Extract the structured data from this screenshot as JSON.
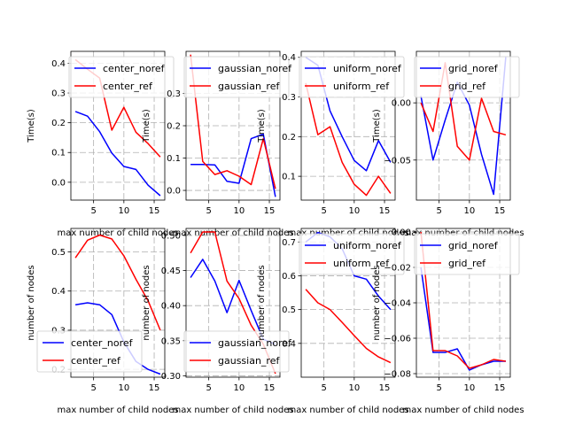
{
  "chart_data": [
    {
      "type": "line",
      "x": [
        2,
        4,
        6,
        8,
        10,
        12,
        14,
        16
      ],
      "ylabel": "Time(s)",
      "xlabel": "max number of child nodes",
      "ylim": [
        -0.06,
        0.44
      ],
      "yticks": [
        0.0,
        0.1,
        0.2,
        0.3,
        0.4
      ],
      "grid": true,
      "legend": "upper right",
      "series": [
        {
          "name": "center_noref",
          "color": "#0000ff",
          "values": [
            0.238,
            0.222,
            0.17,
            0.098,
            0.053,
            0.043,
            -0.01,
            -0.045
          ]
        },
        {
          "name": "center_ref",
          "color": "#ff0000",
          "values": [
            0.412,
            0.38,
            0.35,
            0.175,
            0.252,
            0.168,
            0.13,
            0.085
          ]
        }
      ]
    },
    {
      "type": "line",
      "x": [
        2,
        4,
        6,
        8,
        10,
        12,
        14,
        16
      ],
      "ylabel": "Time(s)",
      "xlabel": "max number of child nodes",
      "ylim": [
        -0.03,
        0.43
      ],
      "yticks": [
        0.0,
        0.1,
        0.2,
        0.3
      ],
      "grid": true,
      "legend": "upper right",
      "series": [
        {
          "name": "gaussian_noref",
          "color": "#0000ff",
          "values": [
            0.08,
            0.08,
            0.079,
            0.028,
            0.022,
            0.16,
            0.174,
            -0.02
          ]
        },
        {
          "name": "gaussian_ref",
          "color": "#ff0000",
          "values": [
            0.42,
            0.09,
            0.049,
            0.061,
            0.044,
            0.018,
            0.16,
            0.005
          ]
        }
      ]
    },
    {
      "type": "line",
      "x": [
        2,
        4,
        6,
        8,
        10,
        12,
        14,
        16
      ],
      "ylabel": "Time(s)",
      "xlabel": "max number of child nodes",
      "ylim": [
        0.04,
        0.415
      ],
      "yticks": [
        0.1,
        0.2,
        0.3,
        0.4
      ],
      "grid": true,
      "legend": "upper right",
      "series": [
        {
          "name": "uniform_noref",
          "color": "#0000ff",
          "values": [
            0.4,
            0.38,
            0.265,
            0.2,
            0.14,
            0.114,
            0.19,
            0.135
          ]
        },
        {
          "name": "uniform_ref",
          "color": "#ff0000",
          "values": [
            0.335,
            0.205,
            0.225,
            0.135,
            0.08,
            0.052,
            0.1,
            0.057
          ]
        }
      ]
    },
    {
      "type": "line",
      "x": [
        2,
        4,
        6,
        8,
        10,
        12,
        14,
        16
      ],
      "ylabel": "Time(s)",
      "xlabel": "max number of child nodes",
      "ylim": [
        -0.085,
        0.045
      ],
      "yticks": [
        -0.05,
        0.0
      ],
      "grid": true,
      "legend": "upper right",
      "series": [
        {
          "name": "grid_noref",
          "color": "#0000ff",
          "values": [
            0.006,
            -0.05,
            -0.015,
            0.018,
            -0.002,
            -0.045,
            -0.08,
            0.04
          ]
        },
        {
          "name": "grid_ref",
          "color": "#ff0000",
          "values": [
            0.0,
            -0.025,
            0.035,
            -0.038,
            -0.05,
            0.004,
            -0.025,
            -0.028
          ]
        }
      ]
    },
    {
      "type": "line",
      "x": [
        2,
        4,
        6,
        8,
        10,
        12,
        14,
        16
      ],
      "ylabel": "number of nodes",
      "xlabel": "max number of child nodes",
      "ylim": [
        0.18,
        0.56
      ],
      "yticks": [
        0.2,
        0.3,
        0.4,
        0.5
      ],
      "grid": true,
      "legend": "lower left",
      "series": [
        {
          "name": "center_noref",
          "color": "#0000ff",
          "values": [
            0.365,
            0.37,
            0.365,
            0.34,
            0.27,
            0.22,
            0.2,
            0.188
          ]
        },
        {
          "name": "center_ref",
          "color": "#ff0000",
          "values": [
            0.485,
            0.53,
            0.543,
            0.533,
            0.49,
            0.43,
            0.375,
            0.3
          ]
        }
      ]
    },
    {
      "type": "line",
      "x": [
        2,
        4,
        6,
        8,
        10,
        12,
        14,
        16
      ],
      "ylabel": "number of nodes",
      "xlabel": "max number of child nodes",
      "ylim": [
        0.298,
        0.51
      ],
      "yticks": [
        0.3,
        0.35,
        0.4,
        0.45,
        0.5
      ],
      "grid": true,
      "legend": "lower right",
      "series": [
        {
          "name": "gaussian_noref",
          "color": "#0000ff",
          "values": [
            0.44,
            0.466,
            0.435,
            0.39,
            0.436,
            0.393,
            0.352,
            0.345
          ]
        },
        {
          "name": "gaussian_ref",
          "color": "#ff0000",
          "values": [
            0.475,
            0.505,
            0.505,
            0.435,
            0.41,
            0.372,
            0.345,
            0.303
          ]
        }
      ]
    },
    {
      "type": "line",
      "x": [
        2,
        4,
        6,
        8,
        10,
        12,
        14,
        16
      ],
      "ylabel": "number of nodes",
      "xlabel": "max number of child nodes",
      "ylim": [
        0.3,
        0.74
      ],
      "yticks": [
        0.4,
        0.5,
        0.6,
        0.7
      ],
      "grid": true,
      "legend": "upper right",
      "series": [
        {
          "name": "uniform_noref",
          "color": "#0000ff",
          "values": [
            0.7,
            0.728,
            0.715,
            0.68,
            0.6,
            0.59,
            0.54,
            0.5
          ]
        },
        {
          "name": "uniform_ref",
          "color": "#ff0000",
          "values": [
            0.56,
            0.52,
            0.5,
            0.462,
            0.423,
            0.385,
            0.36,
            0.343
          ]
        }
      ]
    },
    {
      "type": "line",
      "x": [
        2,
        4,
        6,
        8,
        10,
        12,
        14,
        16
      ],
      "ylabel": "number of nodes",
      "xlabel": "max number of child nodes",
      "ylim": [
        -0.082,
        0.002
      ],
      "yticks": [
        -0.08,
        -0.06,
        -0.04,
        -0.02,
        0.0
      ],
      "grid": true,
      "legend": "upper right",
      "series": [
        {
          "name": "grid_noref",
          "color": "#0000ff",
          "values": [
            -0.02,
            -0.068,
            -0.068,
            -0.066,
            -0.078,
            -0.075,
            -0.073,
            -0.073
          ]
        },
        {
          "name": "grid_ref",
          "color": "#ff0000",
          "values": [
            0.0,
            -0.067,
            -0.067,
            -0.07,
            -0.077,
            -0.075,
            -0.072,
            -0.073
          ]
        }
      ]
    }
  ],
  "xticks": [
    5,
    10,
    15
  ],
  "colors": {
    "grid": "#b0b0b0"
  }
}
